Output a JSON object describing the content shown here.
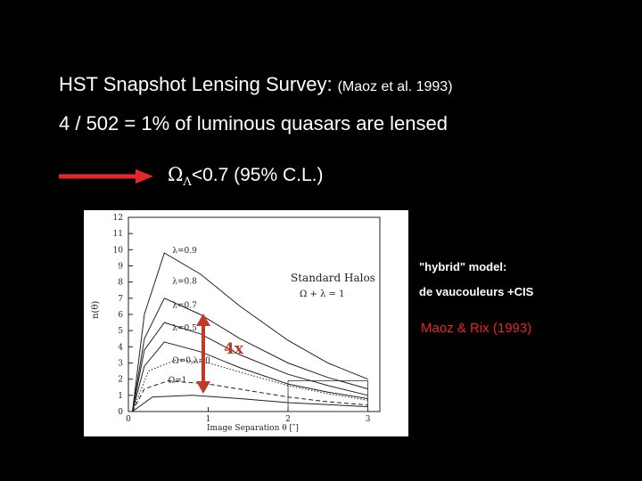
{
  "slide": {
    "title": "HST Snapshot Lensing Survey:",
    "citation": "(Maoz et al. 1993)",
    "result": "4 / 502 = 1% of luminous quasars are lensed",
    "constraint_symbol": "Ω",
    "constraint_sub": "Λ",
    "constraint_text": "<0.7  (95% C.L.)",
    "note_model": "\"hybrid\" model:",
    "note_components": "de vaucouleurs +CIS",
    "note_reference": "Maoz & Rix (1993)",
    "factor_label": "4x",
    "colors": {
      "arrow": "#e5272b",
      "accent": "#c0392b"
    }
  },
  "chart_data": {
    "type": "line",
    "xlabel": "Image Separation θ  [″]",
    "ylabel": "n(θ)",
    "xlim": [
      0,
      3.15
    ],
    "ylim": [
      0,
      12
    ],
    "xticks": [
      0,
      1,
      2,
      3
    ],
    "yticks": [
      0,
      1,
      2,
      3,
      4,
      5,
      6,
      7,
      8,
      9,
      10,
      11,
      12
    ],
    "legend_box": [
      "Standard Halos",
      "Ω + λ = 1"
    ],
    "series": [
      {
        "name": "λ=0.9",
        "line": "solid",
        "points": [
          [
            0.05,
            0
          ],
          [
            0.2,
            6
          ],
          [
            0.45,
            9.8
          ],
          [
            0.9,
            8.5
          ],
          [
            1.4,
            6.5
          ],
          [
            2,
            4.4
          ],
          [
            2.5,
            3.0
          ],
          [
            3,
            2.0
          ]
        ]
      },
      {
        "name": "λ=0.8",
        "line": "solid",
        "points": [
          [
            0.05,
            0
          ],
          [
            0.2,
            4.5
          ],
          [
            0.45,
            7.0
          ],
          [
            0.9,
            6.0
          ],
          [
            1.4,
            4.5
          ],
          [
            2,
            3.0
          ],
          [
            2.5,
            2.1
          ],
          [
            3,
            1.4
          ]
        ]
      },
      {
        "name": "λ=0.7",
        "line": "solid",
        "points": [
          [
            0.05,
            0
          ],
          [
            0.2,
            3.8
          ],
          [
            0.45,
            5.5
          ],
          [
            0.9,
            4.8
          ],
          [
            1.4,
            3.5
          ],
          [
            2,
            2.3
          ],
          [
            2.5,
            1.6
          ],
          [
            3,
            1.0
          ]
        ]
      },
      {
        "name": "λ=0.5",
        "line": "solid",
        "points": [
          [
            0.05,
            0
          ],
          [
            0.2,
            2.8
          ],
          [
            0.45,
            4.3
          ],
          [
            0.9,
            3.7
          ],
          [
            1.4,
            2.7
          ],
          [
            2,
            1.7
          ],
          [
            2.5,
            1.2
          ],
          [
            3,
            0.8
          ]
        ]
      },
      {
        "name": "Ω=0,λ=0",
        "line": "dotted",
        "points": [
          [
            0.05,
            0
          ],
          [
            0.25,
            2.5
          ],
          [
            0.6,
            3.2
          ],
          [
            1.0,
            3.0
          ],
          [
            1.5,
            2.3
          ],
          [
            2,
            1.6
          ],
          [
            2.5,
            1.1
          ],
          [
            3,
            0.7
          ]
        ]
      },
      {
        "name": "Ω=1",
        "line": "dashed",
        "points": [
          [
            0.05,
            0
          ],
          [
            0.2,
            1.4
          ],
          [
            0.5,
            1.9
          ],
          [
            1.0,
            1.7
          ],
          [
            1.5,
            1.3
          ],
          [
            2,
            0.9
          ],
          [
            2.5,
            0.6
          ],
          [
            3,
            0.4
          ]
        ]
      },
      {
        "name": "",
        "line": "solid",
        "points": [
          [
            0.05,
            0
          ],
          [
            0.3,
            0.9
          ],
          [
            0.8,
            1.0
          ],
          [
            1.4,
            0.8
          ],
          [
            2,
            0.55
          ],
          [
            3,
            0.3
          ]
        ]
      }
    ],
    "series_labels": [
      {
        "text": "λ=0.9",
        "x": 0.55,
        "y": 9.8
      },
      {
        "text": "λ=0.8",
        "x": 0.55,
        "y": 7.9
      },
      {
        "text": "λ=0.7",
        "x": 0.55,
        "y": 6.4
      },
      {
        "text": "λ=0.5",
        "x": 0.55,
        "y": 5.0
      },
      {
        "text": "Ω=0,λ=0",
        "x": 0.55,
        "y": 3.0
      },
      {
        "text": "Ω=1",
        "x": 0.5,
        "y": 1.8
      }
    ]
  }
}
